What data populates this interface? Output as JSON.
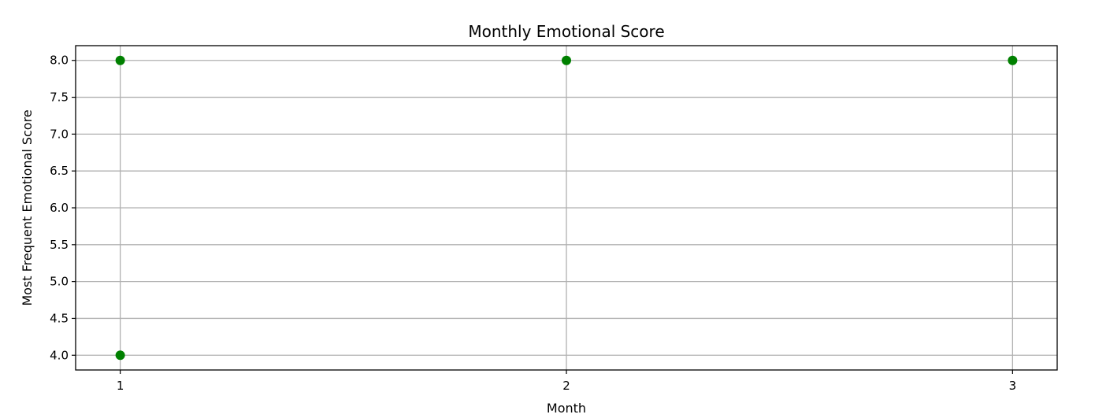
{
  "chart_data": {
    "type": "scatter",
    "title": "Monthly Emotional Score",
    "xlabel": "Month",
    "ylabel": "Most Frequent Emotional Score",
    "x_ticks": [
      1,
      2,
      3
    ],
    "x_tick_labels": [
      "1",
      "2",
      "3"
    ],
    "y_ticks": [
      4.0,
      4.5,
      5.0,
      5.5,
      6.0,
      6.5,
      7.0,
      7.5,
      8.0
    ],
    "y_tick_labels": [
      "4.0",
      "4.5",
      "5.0",
      "5.5",
      "6.0",
      "6.5",
      "7.0",
      "7.5",
      "8.0"
    ],
    "xlim": [
      0.9,
      3.1
    ],
    "ylim": [
      3.8,
      8.2
    ],
    "grid": true,
    "series": [
      {
        "color": "#008000",
        "marker": "circle",
        "points": [
          {
            "x": 1,
            "y": 8.0
          },
          {
            "x": 1,
            "y": 4.0
          },
          {
            "x": 2,
            "y": 8.0
          },
          {
            "x": 3,
            "y": 8.0
          }
        ]
      }
    ]
  }
}
